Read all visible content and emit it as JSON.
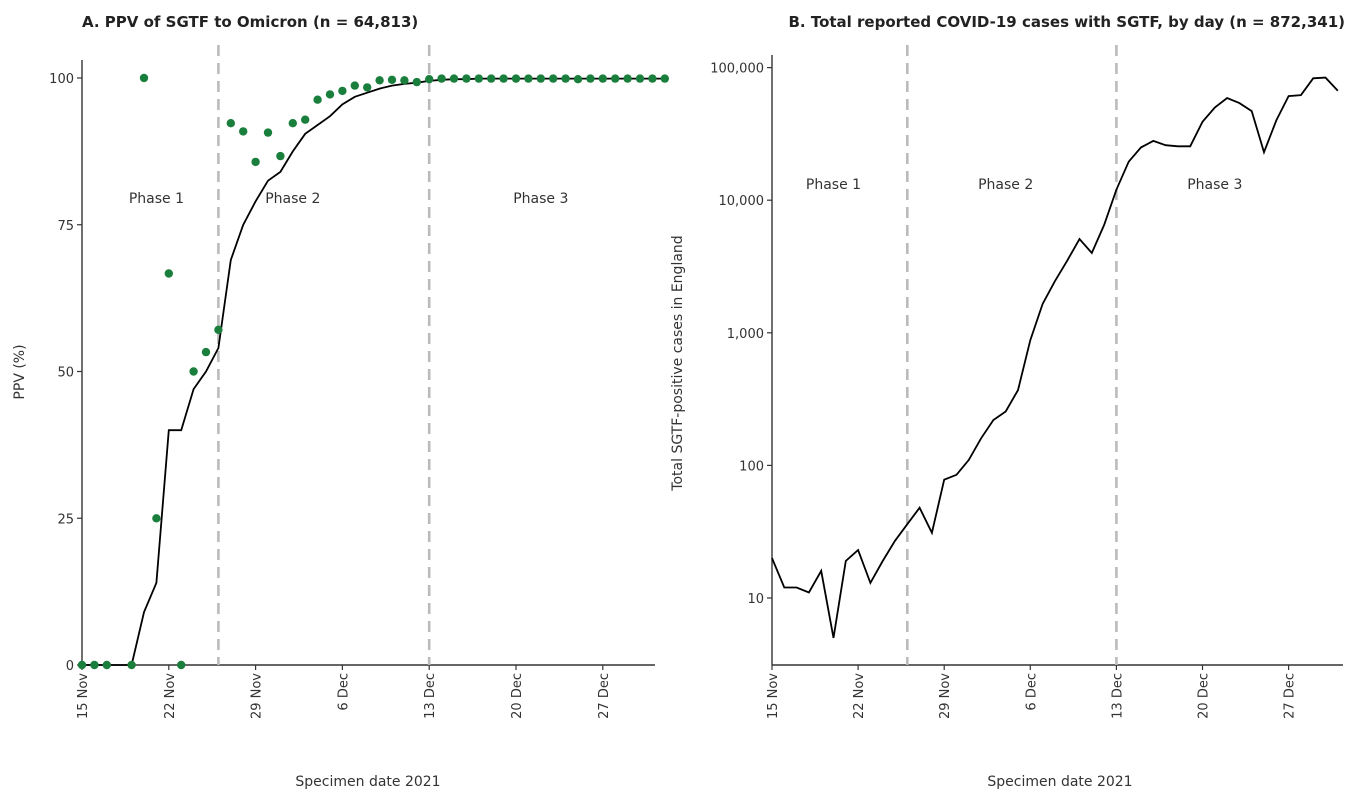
{
  "chart_data": [
    {
      "type": "scatter+line",
      "title": "A. PPV of SGTF to Omicron (n = 64,813)",
      "xlabel": "Specimen date 2021",
      "ylabel": "PPV (%)",
      "x_start": "2021-11-15",
      "x_ticks": [
        "15 Nov",
        "22 Nov",
        "29 Nov",
        "6 Dec",
        "13 Dec",
        "20 Dec",
        "27 Dec"
      ],
      "y_ticks": [
        "0",
        "25",
        "50",
        "75",
        "100"
      ],
      "ylim": [
        0,
        100
      ],
      "phase_dividers": [
        "2021-11-26",
        "2021-12-13"
      ],
      "phases": [
        {
          "label": "Phase 1",
          "center": "2021-11-21"
        },
        {
          "label": "Phase 2",
          "center": "2021-12-02"
        },
        {
          "label": "Phase 3",
          "center": "2021-12-22"
        }
      ],
      "point_color": "#1a7f3c",
      "line_color": "#000000",
      "divider_color": "#bbbbbb",
      "points": [
        [
          "2021-11-15",
          0
        ],
        [
          "2021-11-16",
          0
        ],
        [
          "2021-11-17",
          0
        ],
        [
          "2021-11-19",
          0
        ],
        [
          "2021-11-20",
          100
        ],
        [
          "2021-11-21",
          25
        ],
        [
          "2021-11-22",
          66.7
        ],
        [
          "2021-11-23",
          0
        ],
        [
          "2021-11-24",
          50
        ],
        [
          "2021-11-25",
          53.3
        ],
        [
          "2021-11-26",
          57.1
        ],
        [
          "2021-11-27",
          92.3
        ],
        [
          "2021-11-28",
          90.9
        ],
        [
          "2021-11-29",
          85.7
        ],
        [
          "2021-11-30",
          90.7
        ],
        [
          "2021-12-01",
          86.7
        ],
        [
          "2021-12-02",
          92.3
        ],
        [
          "2021-12-03",
          92.9
        ],
        [
          "2021-12-04",
          96.3
        ],
        [
          "2021-12-05",
          97.2
        ],
        [
          "2021-12-06",
          97.8
        ],
        [
          "2021-12-07",
          98.7
        ],
        [
          "2021-12-08",
          98.4
        ],
        [
          "2021-12-09",
          99.6
        ],
        [
          "2021-12-10",
          99.7
        ],
        [
          "2021-12-11",
          99.6
        ],
        [
          "2021-12-12",
          99.3
        ],
        [
          "2021-12-13",
          99.8
        ],
        [
          "2021-12-14",
          99.9
        ],
        [
          "2021-12-15",
          99.9
        ],
        [
          "2021-12-16",
          99.9
        ],
        [
          "2021-12-17",
          99.9
        ],
        [
          "2021-12-18",
          99.9
        ],
        [
          "2021-12-19",
          99.9
        ],
        [
          "2021-12-20",
          99.9
        ],
        [
          "2021-12-21",
          99.9
        ],
        [
          "2021-12-22",
          99.9
        ],
        [
          "2021-12-23",
          99.9
        ],
        [
          "2021-12-24",
          99.9
        ],
        [
          "2021-12-25",
          99.8
        ],
        [
          "2021-12-26",
          99.9
        ],
        [
          "2021-12-27",
          99.9
        ],
        [
          "2021-12-28",
          99.9
        ],
        [
          "2021-12-29",
          99.9
        ],
        [
          "2021-12-30",
          99.9
        ],
        [
          "2021-12-31",
          99.9
        ],
        [
          "2022-01-01",
          99.9
        ]
      ],
      "line": [
        [
          "2021-11-15",
          0
        ],
        [
          "2021-11-16",
          0
        ],
        [
          "2021-11-17",
          0
        ],
        [
          "2021-11-18",
          0
        ],
        [
          "2021-11-19",
          0
        ],
        [
          "2021-11-20",
          9
        ],
        [
          "2021-11-21",
          14
        ],
        [
          "2021-11-22",
          40
        ],
        [
          "2021-11-23",
          40
        ],
        [
          "2021-11-24",
          47
        ],
        [
          "2021-11-25",
          50
        ],
        [
          "2021-11-26",
          54
        ],
        [
          "2021-11-27",
          69
        ],
        [
          "2021-11-28",
          75
        ],
        [
          "2021-11-29",
          79
        ],
        [
          "2021-11-30",
          82.5
        ],
        [
          "2021-12-01",
          84
        ],
        [
          "2021-12-02",
          87.5
        ],
        [
          "2021-12-03",
          90.5
        ],
        [
          "2021-12-04",
          92
        ],
        [
          "2021-12-05",
          93.5
        ],
        [
          "2021-12-06",
          95.5
        ],
        [
          "2021-12-07",
          96.8
        ],
        [
          "2021-12-08",
          97.5
        ],
        [
          "2021-12-09",
          98.2
        ],
        [
          "2021-12-10",
          98.7
        ],
        [
          "2021-12-11",
          99
        ],
        [
          "2021-12-12",
          99.2
        ],
        [
          "2021-12-13",
          99.5
        ],
        [
          "2021-12-14",
          99.7
        ],
        [
          "2021-12-15",
          99.8
        ],
        [
          "2021-12-16",
          99.8
        ],
        [
          "2021-12-17",
          99.9
        ],
        [
          "2021-12-18",
          99.9
        ],
        [
          "2021-12-19",
          99.9
        ],
        [
          "2021-12-20",
          99.9
        ],
        [
          "2021-12-21",
          99.9
        ],
        [
          "2021-12-22",
          99.9
        ],
        [
          "2021-12-23",
          99.9
        ],
        [
          "2021-12-24",
          99.9
        ],
        [
          "2021-12-25",
          99.9
        ],
        [
          "2021-12-26",
          99.9
        ],
        [
          "2021-12-27",
          99.9
        ],
        [
          "2021-12-28",
          99.9
        ],
        [
          "2021-12-29",
          99.9
        ],
        [
          "2021-12-30",
          99.9
        ],
        [
          "2021-12-31",
          99.9
        ],
        [
          "2022-01-01",
          99.9
        ]
      ]
    },
    {
      "type": "line",
      "title": "B. Total reported COVID-19 cases with SGTF, by day (n = 872,341)",
      "xlabel": "Specimen date 2021",
      "ylabel": "Total SGTF-positive cases in England",
      "y_scale": "log10",
      "x_start": "2021-11-15",
      "x_ticks": [
        "15 Nov",
        "22 Nov",
        "29 Nov",
        "6 Dec",
        "13 Dec",
        "20 Dec",
        "27 Dec"
      ],
      "y_ticks": [
        "10",
        "100",
        "1,000",
        "10,000",
        "100,000"
      ],
      "ylim": [
        3,
        120000
      ],
      "phase_dividers": [
        "2021-11-26",
        "2021-12-13"
      ],
      "phases": [
        {
          "label": "Phase 1",
          "center": "2021-11-20"
        },
        {
          "label": "Phase 2",
          "center": "2021-12-04"
        },
        {
          "label": "Phase 3",
          "center": "2021-12-21"
        }
      ],
      "line_color": "#000000",
      "divider_color": "#bbbbbb",
      "line": [
        [
          "2021-11-15",
          20
        ],
        [
          "2021-11-16",
          12
        ],
        [
          "2021-11-17",
          12
        ],
        [
          "2021-11-18",
          11
        ],
        [
          "2021-11-19",
          16
        ],
        [
          "2021-11-20",
          5
        ],
        [
          "2021-11-21",
          19
        ],
        [
          "2021-11-22",
          23
        ],
        [
          "2021-11-23",
          13
        ],
        [
          "2021-11-24",
          19
        ],
        [
          "2021-11-25",
          27
        ],
        [
          "2021-11-26",
          36
        ],
        [
          "2021-11-27",
          48
        ],
        [
          "2021-11-28",
          31
        ],
        [
          "2021-11-29",
          78
        ],
        [
          "2021-11-30",
          85
        ],
        [
          "2021-12-01",
          110
        ],
        [
          "2021-12-02",
          160
        ],
        [
          "2021-12-03",
          220
        ],
        [
          "2021-12-04",
          255
        ],
        [
          "2021-12-05",
          370
        ],
        [
          "2021-12-06",
          880
        ],
        [
          "2021-12-07",
          1650
        ],
        [
          "2021-12-08",
          2450
        ],
        [
          "2021-12-09",
          3500
        ],
        [
          "2021-12-10",
          5100
        ],
        [
          "2021-12-11",
          4000
        ],
        [
          "2021-12-12",
          6500
        ],
        [
          "2021-12-13",
          12000
        ],
        [
          "2021-12-14",
          19500
        ],
        [
          "2021-12-15",
          25000
        ],
        [
          "2021-12-16",
          28000
        ],
        [
          "2021-12-17",
          26000
        ],
        [
          "2021-12-18",
          25500
        ],
        [
          "2021-12-19",
          25500
        ],
        [
          "2021-12-20",
          39000
        ],
        [
          "2021-12-21",
          50000
        ],
        [
          "2021-12-22",
          59000
        ],
        [
          "2021-12-23",
          54000
        ],
        [
          "2021-12-24",
          47000
        ],
        [
          "2021-12-25",
          23000
        ],
        [
          "2021-12-26",
          40000
        ],
        [
          "2021-12-27",
          61000
        ],
        [
          "2021-12-28",
          62000
        ],
        [
          "2021-12-29",
          83000
        ],
        [
          "2021-12-30",
          84000
        ],
        [
          "2021-12-31",
          67000
        ]
      ]
    }
  ]
}
